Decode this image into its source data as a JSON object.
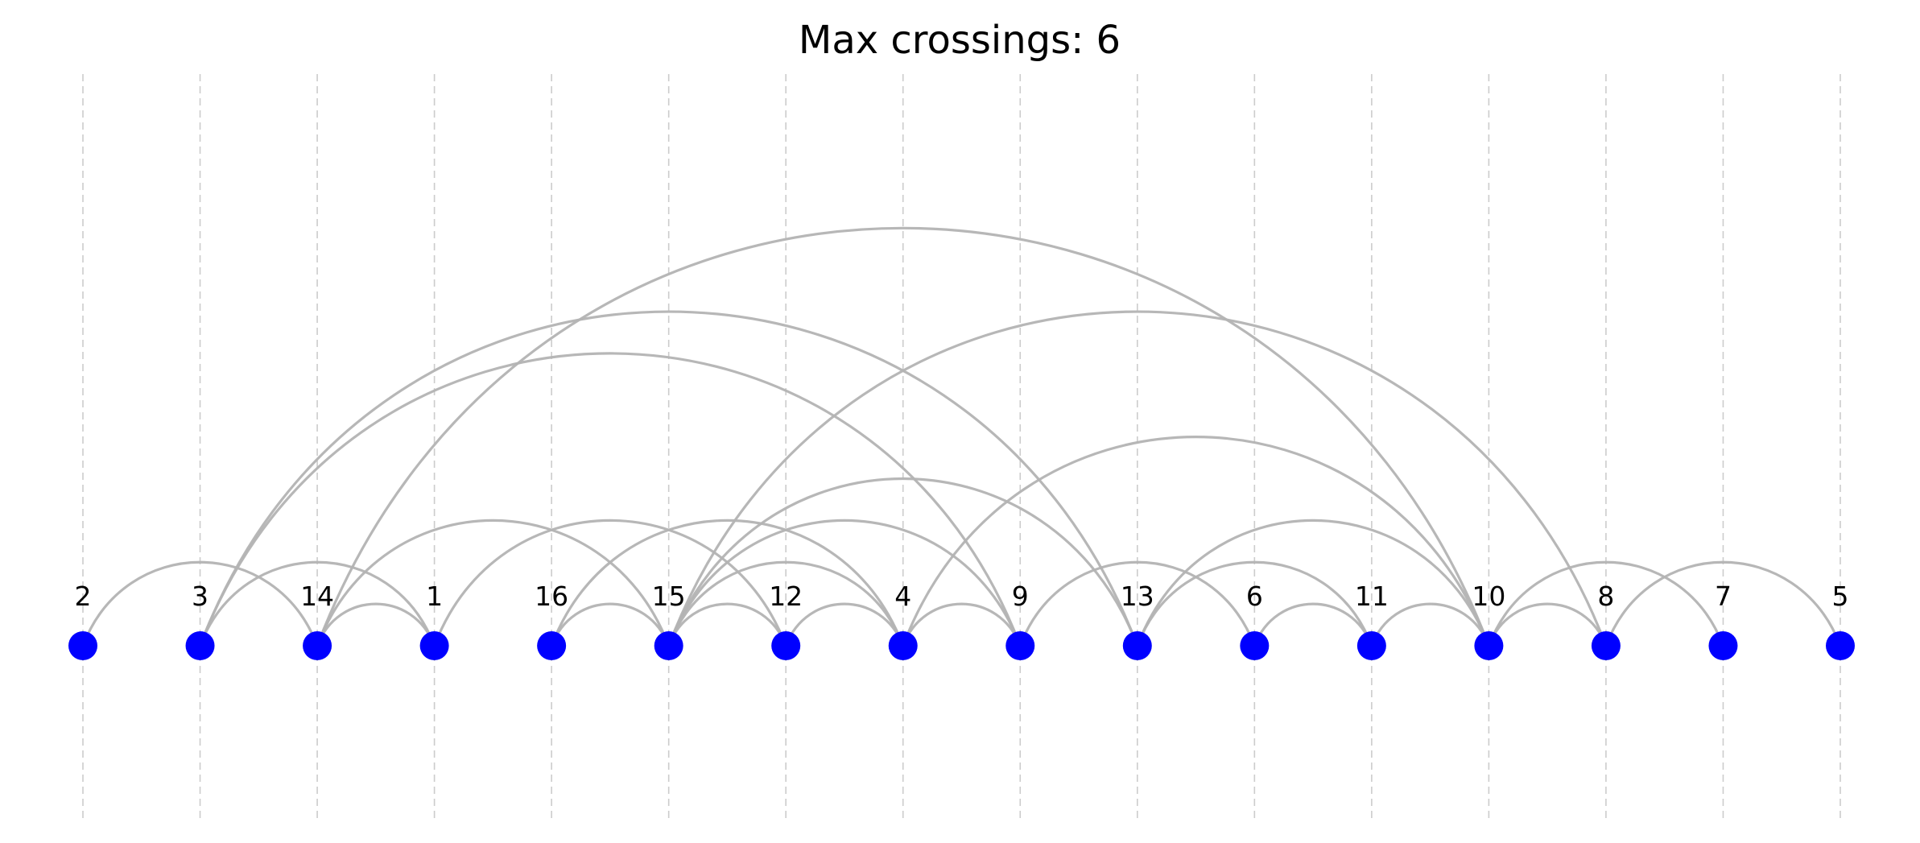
{
  "title": "Max crossings: 6",
  "colors": {
    "node": "#0000ff",
    "edge": "#b3b3b3",
    "guide": "#cccccc",
    "text": "#000000",
    "background": "#ffffff"
  },
  "diagram": {
    "type": "arc-diagram",
    "node_order": [
      "2",
      "3",
      "14",
      "1",
      "16",
      "15",
      "12",
      "4",
      "9",
      "13",
      "6",
      "11",
      "10",
      "8",
      "7",
      "5"
    ],
    "edges": [
      [
        "2",
        "14"
      ],
      [
        "3",
        "1"
      ],
      [
        "3",
        "9"
      ],
      [
        "3",
        "13"
      ],
      [
        "14",
        "1"
      ],
      [
        "14",
        "15"
      ],
      [
        "14",
        "10"
      ],
      [
        "1",
        "12"
      ],
      [
        "16",
        "15"
      ],
      [
        "16",
        "4"
      ],
      [
        "15",
        "12"
      ],
      [
        "15",
        "4"
      ],
      [
        "15",
        "9"
      ],
      [
        "15",
        "13"
      ],
      [
        "15",
        "8"
      ],
      [
        "12",
        "4"
      ],
      [
        "4",
        "9"
      ],
      [
        "4",
        "10"
      ],
      [
        "9",
        "6"
      ],
      [
        "13",
        "11"
      ],
      [
        "13",
        "10"
      ],
      [
        "6",
        "11"
      ],
      [
        "11",
        "10"
      ],
      [
        "10",
        "8"
      ],
      [
        "10",
        "7"
      ],
      [
        "8",
        "5"
      ]
    ]
  }
}
